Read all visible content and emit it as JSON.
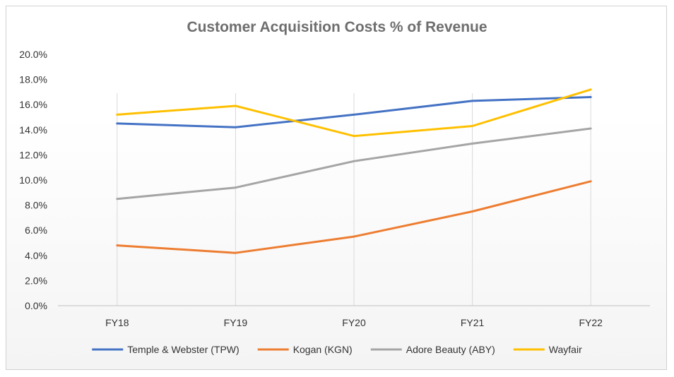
{
  "chart_data": {
    "type": "line",
    "title": "Customer Acquisition Costs % of Revenue",
    "xlabel": "",
    "ylabel": "",
    "categories": [
      "FY18",
      "FY19",
      "FY20",
      "FY21",
      "FY22"
    ],
    "ylim": [
      0,
      20
    ],
    "y_ticks": [
      "0.0%",
      "2.0%",
      "4.0%",
      "6.0%",
      "8.0%",
      "10.0%",
      "12.0%",
      "14.0%",
      "16.0%",
      "18.0%",
      "20.0%"
    ],
    "grid": "vertical",
    "legend_position": "bottom",
    "series": [
      {
        "name": "Temple & Webster (TPW)",
        "color": "#4472C4",
        "values": [
          14.5,
          14.2,
          15.2,
          16.3,
          16.6
        ]
      },
      {
        "name": "Kogan (KGN)",
        "color": "#ED7D31",
        "values": [
          4.8,
          4.2,
          5.5,
          7.5,
          9.9
        ]
      },
      {
        "name": "Adore Beauty (ABY)",
        "color": "#A5A5A5",
        "values": [
          8.5,
          9.4,
          11.5,
          12.9,
          14.1
        ]
      },
      {
        "name": "Wayfair",
        "color": "#FFC000",
        "values": [
          15.2,
          15.9,
          13.5,
          14.3,
          17.2
        ]
      }
    ]
  }
}
